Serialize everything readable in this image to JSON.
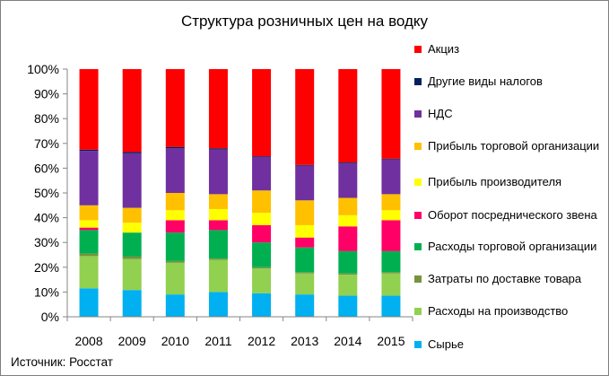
{
  "chart_data": {
    "type": "bar",
    "stacked": true,
    "title": "Структура розничных цен на водку",
    "xlabel": "",
    "ylabel": "",
    "ylim": [
      0,
      100
    ],
    "yticks": [
      "0%",
      "10%",
      "20%",
      "30%",
      "40%",
      "50%",
      "60%",
      "70%",
      "80%",
      "90%",
      "100%"
    ],
    "grid": false,
    "legend_position": "right",
    "categories": [
      "2008",
      "2009",
      "2010",
      "2011",
      "2012",
      "2013",
      "2014",
      "2015"
    ],
    "series": [
      {
        "name": "Сырье",
        "color": "#00b0f0",
        "values": [
          11.5,
          10.8,
          9.0,
          10.0,
          9.5,
          9.0,
          8.5,
          8.5
        ]
      },
      {
        "name": "Расходы на производство",
        "color": "#92d050",
        "values": [
          13.0,
          12.5,
          12.8,
          13.0,
          10.0,
          8.5,
          8.5,
          9.0
        ]
      },
      {
        "name": "Затраты по доставке товара",
        "color": "#77933c",
        "values": [
          1.0,
          1.0,
          0.7,
          0.5,
          0.5,
          0.5,
          0.5,
          0.5
        ]
      },
      {
        "name": "Расходы торговой организации",
        "color": "#00b050",
        "values": [
          9.5,
          9.7,
          11.5,
          11.5,
          10.0,
          10.0,
          9.0,
          8.5
        ]
      },
      {
        "name": "Оборот посреднического звена",
        "color": "#ff0066",
        "values": [
          1.0,
          0.0,
          5.0,
          4.0,
          7.0,
          4.0,
          10.0,
          12.5
        ]
      },
      {
        "name": "Прибыль производителя",
        "color": "#ffff00",
        "values": [
          3.0,
          4.0,
          4.0,
          4.5,
          5.0,
          5.0,
          4.5,
          4.0
        ]
      },
      {
        "name": "Прибыль торговой организации",
        "color": "#ffc000",
        "values": [
          6.0,
          6.0,
          7.0,
          6.0,
          9.0,
          10.0,
          7.0,
          6.5
        ]
      },
      {
        "name": "НДС",
        "color": "#7030a0",
        "values": [
          22.0,
          22.0,
          18.0,
          18.0,
          13.5,
          14.0,
          14.0,
          14.0
        ]
      },
      {
        "name": "Другие виды налогов",
        "color": "#002060",
        "values": [
          0.5,
          0.5,
          0.5,
          0.5,
          0.3,
          0.3,
          0.3,
          0.3
        ]
      },
      {
        "name": "Акциз",
        "color": "#ff0000",
        "values": [
          32.5,
          33.5,
          31.5,
          32.0,
          35.2,
          38.7,
          37.7,
          36.2
        ]
      }
    ]
  },
  "source": "Источник: Росстат"
}
